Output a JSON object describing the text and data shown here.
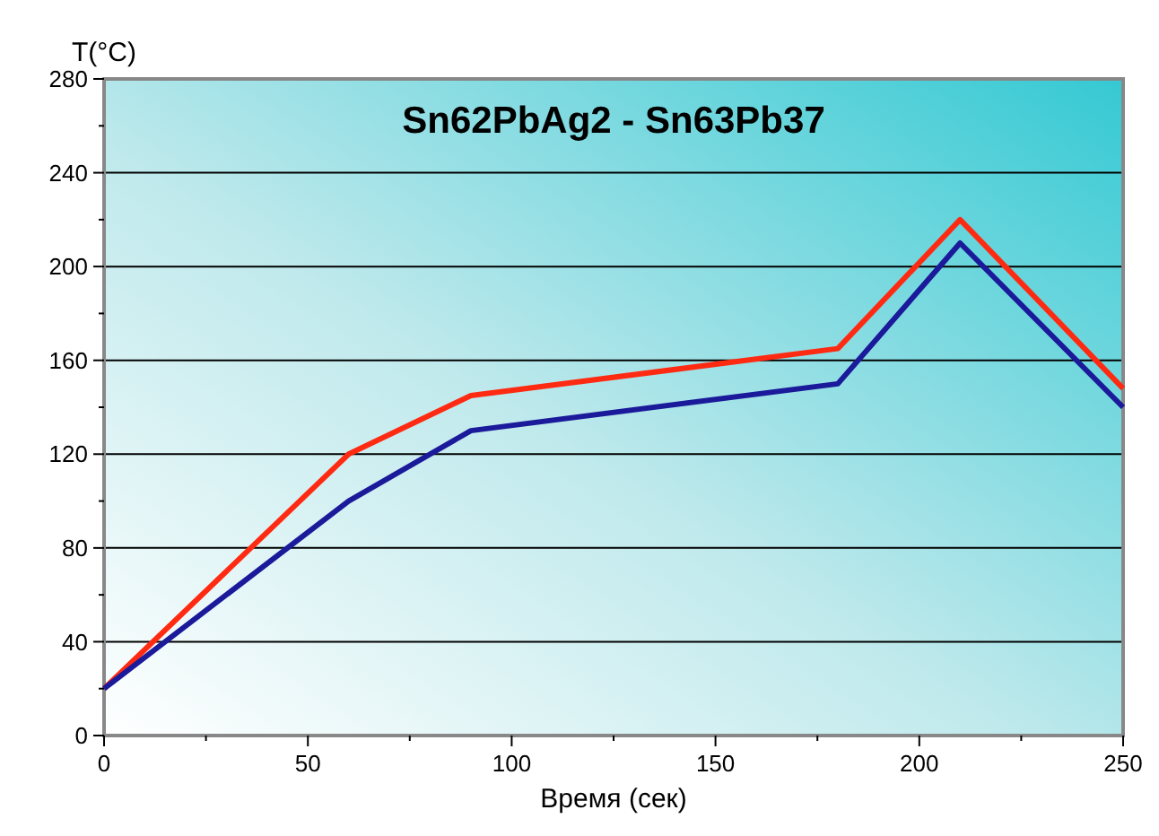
{
  "chart_data": {
    "type": "line",
    "title": "Sn62PbAg2 - Sn63Pb37",
    "xlabel": "Время (сек)",
    "ylabel": "T(°C)",
    "x": [
      0,
      60,
      90,
      180,
      210,
      250
    ],
    "series": [
      {
        "color": "#ff2a12",
        "values": [
          20,
          120,
          145,
          165,
          220,
          148
        ]
      },
      {
        "color": "#1a1a9a",
        "values": [
          20,
          100,
          130,
          150,
          210,
          140
        ]
      }
    ],
    "xlim": [
      0,
      250
    ],
    "xticks": [
      0,
      {
        "value": 25,
        "label": null
      },
      50,
      {
        "value": 75,
        "label": null
      },
      100,
      {
        "value": 125,
        "label": null
      },
      150,
      {
        "value": 175,
        "label": null
      },
      200,
      {
        "value": 225,
        "label": null
      },
      250
    ],
    "ylim": [
      0,
      280
    ],
    "yticks": [
      0,
      {
        "value": 20,
        "label": null
      },
      40,
      {
        "value": 60,
        "label": null
      },
      80,
      {
        "value": 100,
        "label": null
      },
      120,
      {
        "value": 140,
        "label": null
      },
      160,
      {
        "value": 180,
        "label": null
      },
      200,
      {
        "value": 220,
        "label": null
      },
      240,
      {
        "value": 260,
        "label": null
      },
      280
    ],
    "grid": "y",
    "marker": "none",
    "line_style": "solid"
  }
}
